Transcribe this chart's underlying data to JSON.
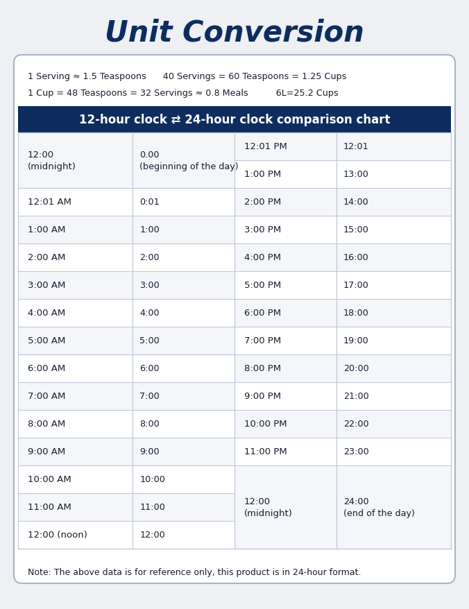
{
  "title": "Unit Conversion",
  "bg_color": "#eef0f4",
  "card_bg": "#ffffff",
  "card_border": "#a8b4c8",
  "header_bg": "#0d2d5e",
  "header_text": "#ffffff",
  "cell_bg_light": "#f4f6f9",
  "cell_bg_white": "#ffffff",
  "cell_text": "#1a1a2e",
  "divider_color": "#c0c8d8",
  "info_line1": "1 Serving ≈ 1.5 Teaspoons      40 Servings = 60 Teaspoons = 1.25 Cups",
  "info_line2": "1 Cup = 48 Teaspoons = 32 Servings ≈ 0.8 Meals          6L=25.2 Cups",
  "header_label": "12-hour clock ⇄ 24-hour clock comparison chart",
  "note": "Note: The above data is for reference only, this product is in 24-hour format."
}
